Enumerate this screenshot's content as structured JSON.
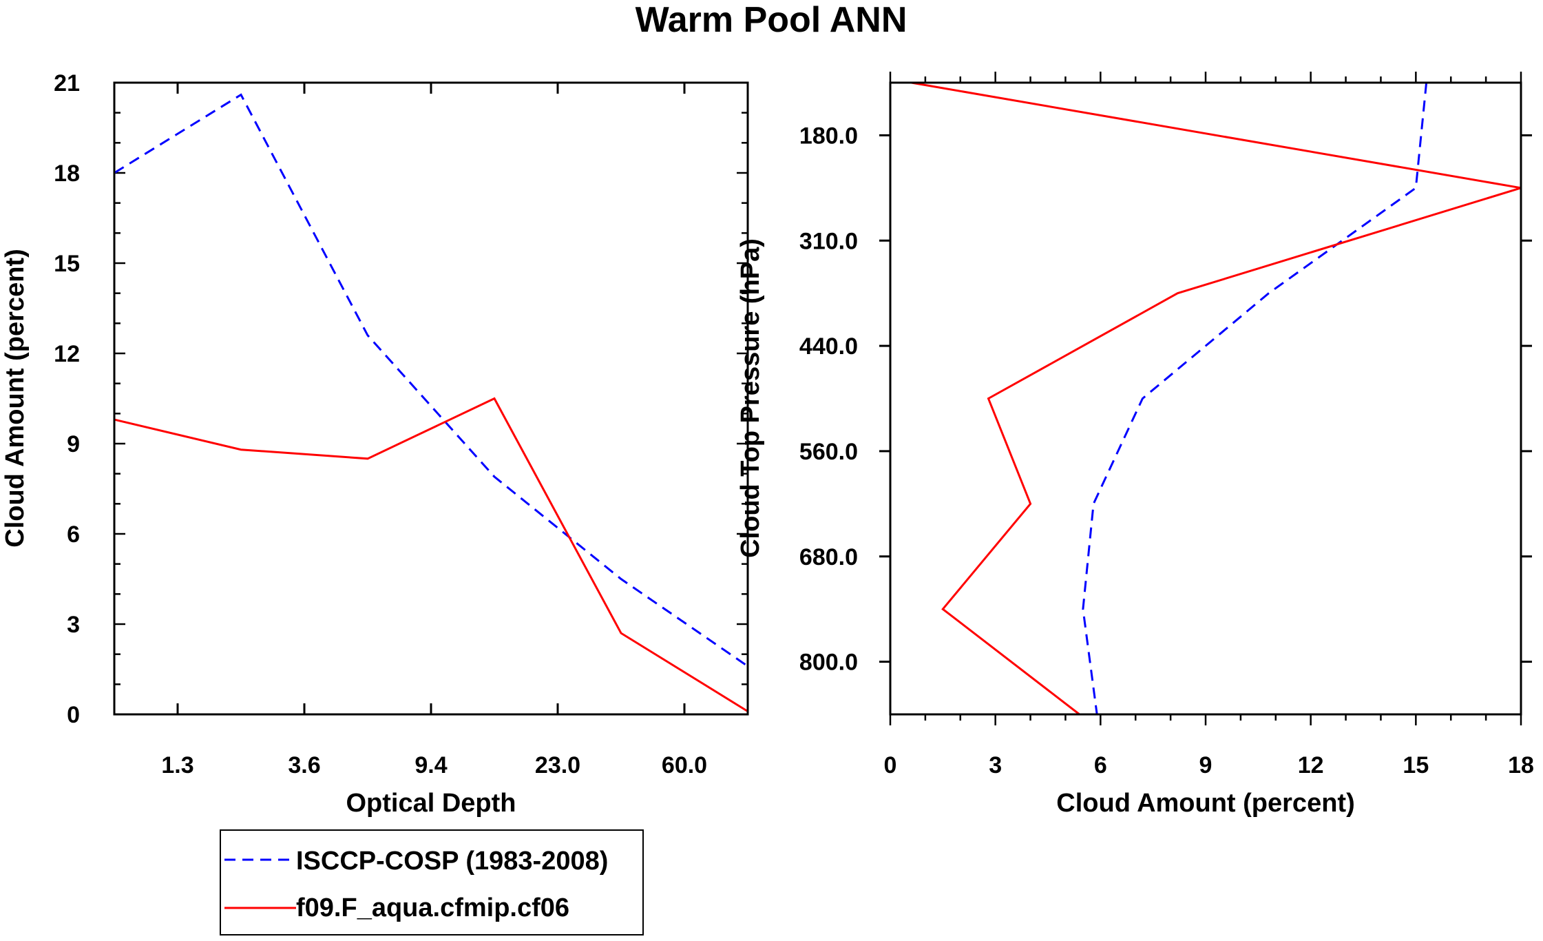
{
  "title": "Warm Pool ANN",
  "legend": [
    {
      "label": "ISCCP-COSP (1983-2008)",
      "color": "#0000ff",
      "dash": "dashed"
    },
    {
      "label": "f09.F_aqua.cfmip.cf06",
      "color": "#ff0000",
      "dash": "solid"
    }
  ],
  "chart_data": [
    {
      "type": "line",
      "xlabel": "Optical Depth",
      "ylabel": "Cloud Amount (percent)",
      "x_tick_labels": [
        "1.3",
        "3.6",
        "9.4",
        "23.0",
        "60.0"
      ],
      "x_tick_positions": [
        1,
        3,
        5,
        7,
        9
      ],
      "xlim": [
        0,
        10
      ],
      "y_ticks": [
        "0",
        "3",
        "6",
        "9",
        "12",
        "15",
        "18",
        "21"
      ],
      "ylim": [
        0,
        21
      ],
      "series": [
        {
          "name": "ISCCP-COSP (1983-2008)",
          "color": "#0000ff",
          "dash": "dashed",
          "x": [
            0,
            2,
            4,
            6,
            8,
            10
          ],
          "y": [
            18.0,
            20.6,
            12.6,
            7.9,
            4.5,
            1.6
          ]
        },
        {
          "name": "f09.F_aqua.cfmip.cf06",
          "color": "#ff0000",
          "dash": "solid",
          "x": [
            0,
            2,
            4,
            6,
            8,
            10
          ],
          "y": [
            9.8,
            8.8,
            8.5,
            10.5,
            2.7,
            0.1
          ]
        }
      ]
    },
    {
      "type": "line",
      "xlabel": "Cloud Amount (percent)",
      "ylabel": "Cloud Top Pressure (hPa)",
      "x_ticks": [
        "0",
        "3",
        "6",
        "9",
        "12",
        "15",
        "18"
      ],
      "xlim": [
        0,
        18
      ],
      "y_tick_labels": [
        "180.0",
        "310.0",
        "440.0",
        "560.0",
        "680.0",
        "800.0"
      ],
      "y_tick_positions": [
        1,
        3,
        5,
        7,
        9,
        11
      ],
      "ylim": [
        0,
        12
      ],
      "y_inverted": true,
      "series": [
        {
          "name": "ISCCP-COSP (1983-2008)",
          "color": "#0000ff",
          "dash": "dashed",
          "y": [
            0,
            2,
            4,
            6,
            8,
            10,
            12
          ],
          "x": [
            15.3,
            15.0,
            10.8,
            7.2,
            5.8,
            5.5,
            5.9
          ]
        },
        {
          "name": "f09.F_aqua.cfmip.cf06",
          "color": "#ff0000",
          "dash": "solid",
          "y": [
            0,
            2,
            4,
            6,
            8,
            10,
            12
          ],
          "x": [
            0.6,
            18.0,
            8.2,
            2.8,
            4.0,
            1.5,
            5.4
          ]
        }
      ]
    }
  ]
}
